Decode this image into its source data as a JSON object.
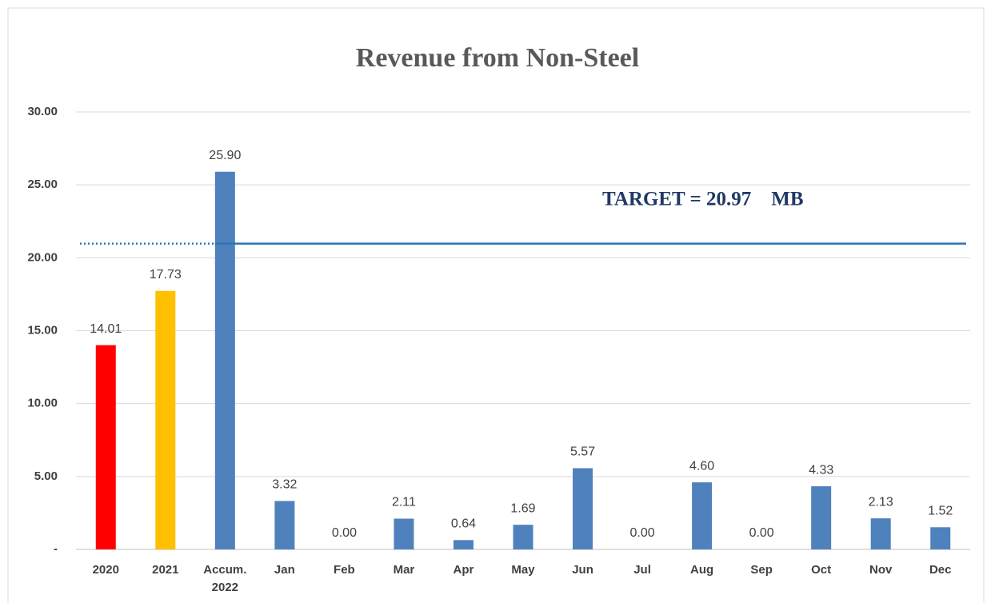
{
  "chart_data": {
    "type": "bar",
    "title": "Revenue  from  Non-Steel",
    "categories": [
      "2020",
      "2021",
      "Accum. 2022",
      "Jan",
      "Feb",
      "Mar",
      "Apr",
      "May",
      "Jun",
      "Jul",
      "Aug",
      "Sep",
      "Oct",
      "Nov",
      "Dec"
    ],
    "values": [
      14.01,
      17.73,
      25.9,
      3.32,
      0,
      2.11,
      0.64,
      1.69,
      5.57,
      0,
      4.6,
      0,
      4.33,
      2.13,
      1.52
    ],
    "value_labels": [
      "14.01",
      "17.73",
      "25.90",
      "3.32",
      "0.00",
      "2.11",
      "0.64",
      "1.69",
      "5.57",
      "0.00",
      "4.60",
      "0.00",
      "4.33",
      "2.13",
      "1.52"
    ],
    "colors": [
      "#ff0000",
      "#ffc000",
      "#4f81bd",
      "#4f81bd",
      "#4f81bd",
      "#4f81bd",
      "#4f81bd",
      "#4f81bd",
      "#4f81bd",
      "#4f81bd",
      "#4f81bd",
      "#4f81bd",
      "#4f81bd",
      "#4f81bd",
      "#4f81bd"
    ],
    "ylim": [
      0,
      30
    ],
    "yticks": [
      {
        "value": 0,
        "label": "-"
      },
      {
        "value": 5,
        "label": "5.00"
      },
      {
        "value": 10,
        "label": "10.00"
      },
      {
        "value": 15,
        "label": "15.00"
      },
      {
        "value": 20,
        "label": "20.00"
      },
      {
        "value": 25,
        "label": "25.00"
      },
      {
        "value": 30,
        "label": "30.00"
      }
    ],
    "grid": true,
    "target": {
      "value": 20.97,
      "label": "TARGET = 20.97    MB",
      "color": "#2e75b6"
    }
  }
}
